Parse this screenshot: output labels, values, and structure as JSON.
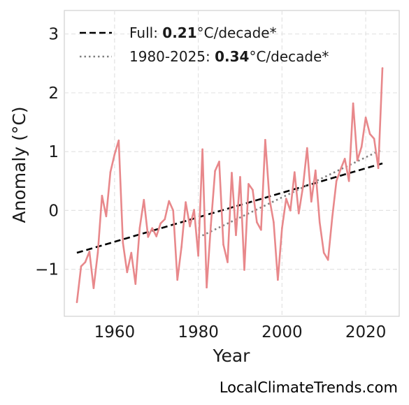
{
  "chart_data": {
    "type": "line",
    "xlabel": "Year",
    "ylabel": "Anomaly (°C)",
    "xlim": [
      1948,
      2028
    ],
    "ylim": [
      -1.8,
      3.4
    ],
    "x_ticks": [
      1960,
      1980,
      2000,
      2020
    ],
    "y_ticks": [
      -1,
      0,
      1,
      2,
      3
    ],
    "y_tick_labels": [
      "−1",
      "0",
      "1",
      "2",
      "3"
    ],
    "grid": true,
    "legend_position": "top-left",
    "series_color": "#e8888b",
    "x": [
      1951,
      1952,
      1953,
      1954,
      1955,
      1956,
      1957,
      1958,
      1959,
      1960,
      1961,
      1962,
      1963,
      1964,
      1965,
      1966,
      1967,
      1968,
      1969,
      1970,
      1971,
      1972,
      1973,
      1974,
      1975,
      1976,
      1977,
      1978,
      1979,
      1980,
      1981,
      1982,
      1983,
      1984,
      1985,
      1986,
      1987,
      1988,
      1989,
      1990,
      1991,
      1992,
      1993,
      1994,
      1995,
      1996,
      1997,
      1998,
      1999,
      2000,
      2001,
      2002,
      2003,
      2004,
      2005,
      2006,
      2007,
      2008,
      2009,
      2010,
      2011,
      2012,
      2013,
      2014,
      2015,
      2016,
      2017,
      2018,
      2019,
      2020,
      2021,
      2022,
      2023,
      2024
    ],
    "values": [
      -1.56,
      -0.95,
      -0.88,
      -0.7,
      -1.32,
      -0.72,
      0.25,
      -0.1,
      0.65,
      0.95,
      1.19,
      -0.55,
      -1.05,
      -0.72,
      -1.25,
      -0.3,
      0.18,
      -0.45,
      -0.3,
      -0.44,
      -0.22,
      -0.15,
      0.16,
      0.0,
      -1.18,
      -0.62,
      0.14,
      -0.27,
      0.01,
      -0.77,
      1.04,
      -1.31,
      -0.25,
      0.67,
      0.83,
      -0.58,
      -0.88,
      0.64,
      -0.42,
      0.57,
      -1.01,
      0.45,
      0.35,
      -0.2,
      -0.33,
      1.2,
      0.2,
      -0.2,
      -1.18,
      -0.3,
      0.2,
      0.0,
      0.65,
      -0.05,
      0.4,
      1.06,
      0.15,
      0.68,
      -0.2,
      -0.72,
      -0.84,
      -0.12,
      0.5,
      0.7,
      0.88,
      0.5,
      1.82,
      0.85,
      1.08,
      1.58,
      1.3,
      1.22,
      0.72,
      2.42
    ],
    "trend_lines": [
      {
        "style": "dashed",
        "color": "#000000",
        "x": [
          1951,
          2024
        ],
        "y": [
          -0.72,
          0.8
        ]
      },
      {
        "style": "dotted",
        "color": "#808080",
        "x": [
          1980,
          2024
        ],
        "y": [
          -0.46,
          1.04
        ]
      }
    ],
    "legend": [
      {
        "prefix": "Full: ",
        "value": "0.21",
        "suffix": "°C/decade*"
      },
      {
        "prefix": "1980-2025: ",
        "value": "0.34",
        "suffix": "°C/decade*"
      }
    ]
  },
  "footer": {
    "text": "LocalClimateTrends.com"
  }
}
